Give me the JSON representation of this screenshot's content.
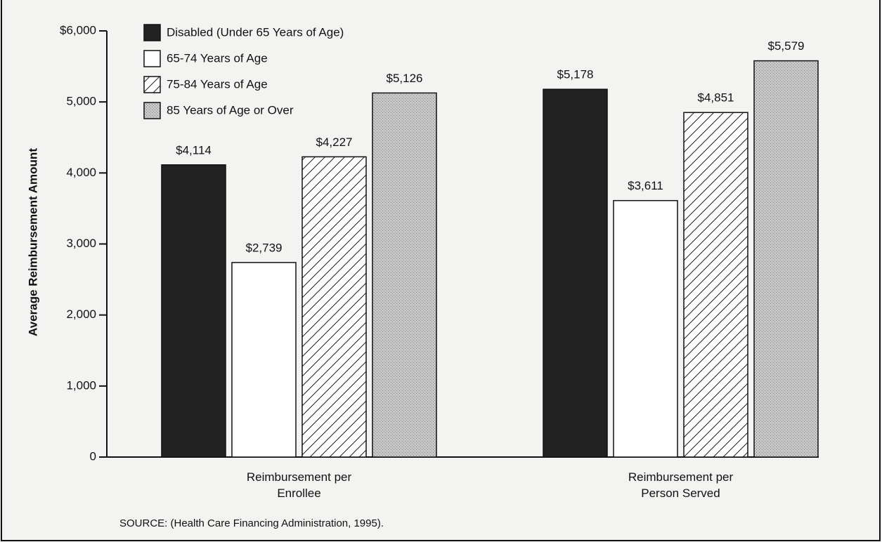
{
  "chart_data": {
    "type": "bar",
    "ylabel": "Average Reimbursement Amount",
    "source": "SOURCE: (Health Care Financing Administration, 1995).",
    "categories": [
      "Reimbursement per Enrollee",
      "Reimbursement per Person Served"
    ],
    "series": [
      {
        "name": "Disabled (Under 65 Years of Age)",
        "color": "#222222",
        "pattern": "solid",
        "values": [
          4114,
          5178
        ],
        "value_labels": [
          "$4,114",
          "$5,178"
        ]
      },
      {
        "name": "65-74 Years of Age",
        "color": "#ffffff",
        "pattern": "solid",
        "values": [
          2739,
          3611
        ],
        "value_labels": [
          "$2,739",
          "$3,611"
        ]
      },
      {
        "name": "75-84 Years of Age",
        "color": "#ffffff",
        "pattern": "hatch",
        "values": [
          4227,
          4851
        ],
        "value_labels": [
          "$4,227",
          "$4,851"
        ]
      },
      {
        "name": "85 Years of Age or Over",
        "color": "#c8c8c8",
        "pattern": "stipple",
        "values": [
          5126,
          5579
        ],
        "value_labels": [
          "$5,126",
          "$5,579"
        ]
      }
    ],
    "ylim": [
      0,
      6000
    ],
    "yticks": [
      0,
      {
        "value": 1000,
        "label": "1,000"
      },
      {
        "value": 2000,
        "label": "2,000"
      },
      {
        "value": 3000,
        "label": "3,000"
      },
      {
        "value": 4000,
        "label": "4,000"
      },
      {
        "value": 5000,
        "label": "5,000"
      },
      {
        "value": 6000,
        "label": "$6,000"
      }
    ],
    "legend": "top-left"
  }
}
